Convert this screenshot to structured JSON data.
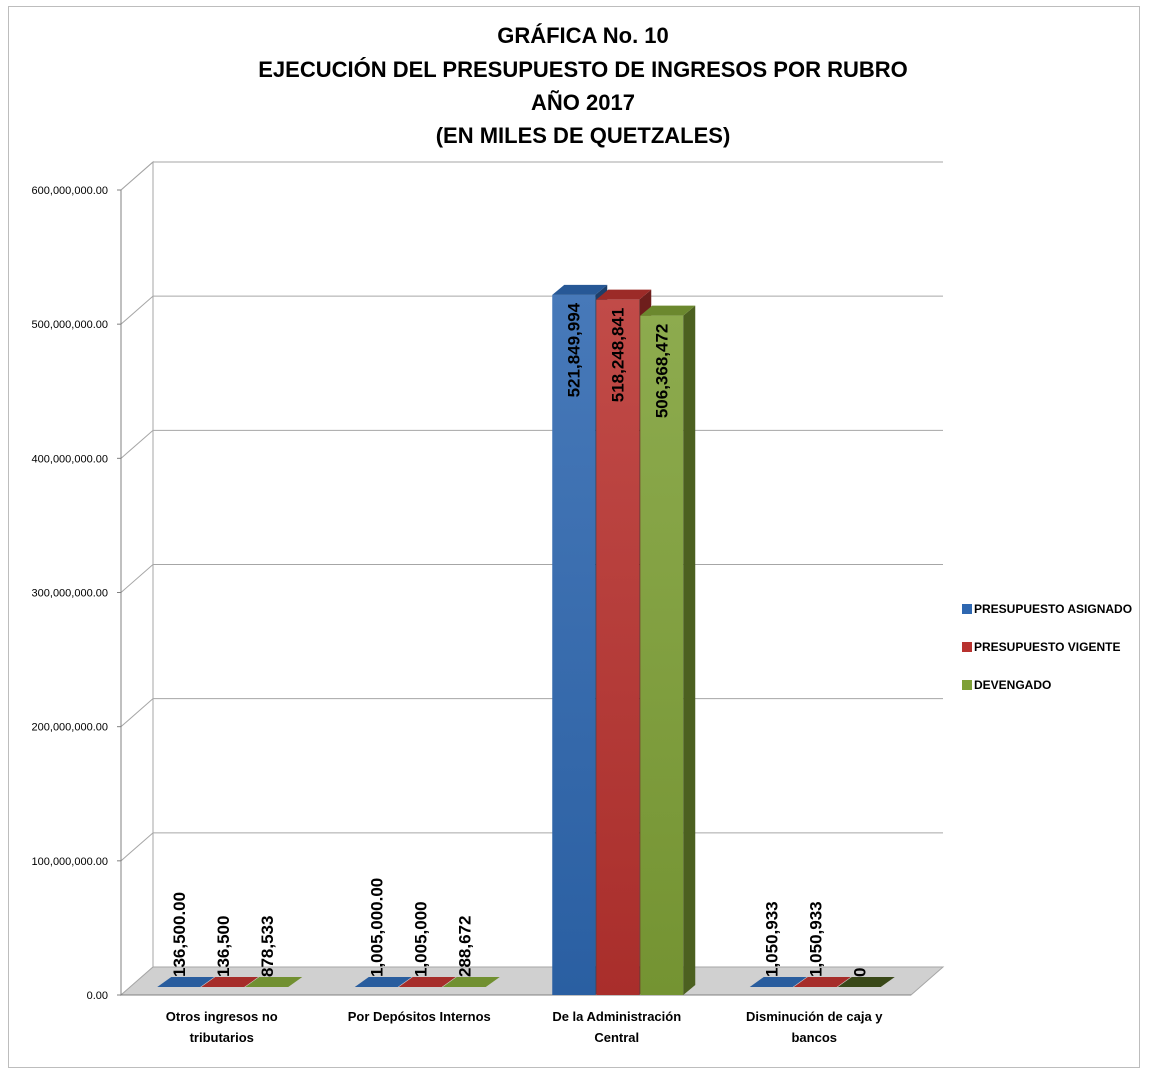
{
  "chart_data": {
    "type": "bar",
    "title_lines": [
      "GRÁFICA No. 10",
      "EJECUCIÓN DEL PRESUPUESTO DE INGRESOS POR RUBRO",
      "AÑO 2017",
      "(EN MILES DE QUETZALES)"
    ],
    "categories": [
      [
        "Otros ingresos no",
        "tributarios"
      ],
      [
        "Por Depósitos Internos"
      ],
      [
        "De la Administración",
        "Central"
      ],
      [
        "Disminución de caja y",
        "bancos"
      ]
    ],
    "series": [
      {
        "name": "PRESUPUESTO ASIGNADO",
        "color": "#2e67b0",
        "values": [
          136500,
          1005000,
          521849994,
          1050933
        ],
        "labels": [
          "136,500.00",
          "1,005,000.00",
          "521,849,994",
          "1,050,933"
        ]
      },
      {
        "name": "PRESUPUESTO VIGENTE",
        "color": "#b8322f",
        "values": [
          136500,
          1005000,
          518248841,
          1050933
        ],
        "labels": [
          "136,500",
          "1,005,000",
          "518,248,841",
          "1,050,933"
        ]
      },
      {
        "name": "DEVENGADO",
        "color": "#7ea036",
        "values": [
          878533,
          288672,
          506368472,
          0
        ],
        "labels": [
          "878,533",
          "288,672",
          "506,368,472",
          "0"
        ]
      }
    ],
    "yticks": [
      "0.00",
      "100,000,000.00",
      "200,000,000.00",
      "300,000,000.00",
      "400,000,000.00",
      "500,000,000.00",
      "600,000,000.00"
    ],
    "ylim": [
      0,
      600000000
    ],
    "grid": true,
    "legend_position": "right",
    "xlabel": "",
    "ylabel": ""
  }
}
